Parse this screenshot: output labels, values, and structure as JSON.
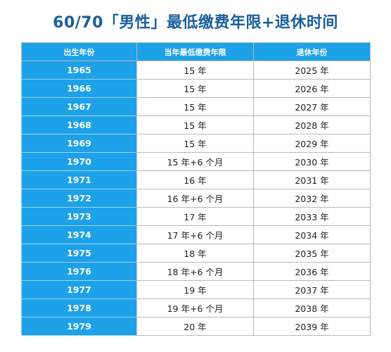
{
  "title": "60/70「男性」最低缴费年限+退休时间",
  "table": {
    "headers": [
      "出生年份",
      "当年最低缴费年限",
      "退休年份"
    ],
    "rows": [
      {
        "birth_year": "1965",
        "min_years": "15 年",
        "retire_year": "2025 年"
      },
      {
        "birth_year": "1966",
        "min_years": "15 年",
        "retire_year": "2026 年"
      },
      {
        "birth_year": "1967",
        "min_years": "15 年",
        "retire_year": "2027 年"
      },
      {
        "birth_year": "1968",
        "min_years": "15 年",
        "retire_year": "2028 年"
      },
      {
        "birth_year": "1969",
        "min_years": "15 年",
        "retire_year": "2029 年"
      },
      {
        "birth_year": "1970",
        "min_years": "15 年+6 个月",
        "retire_year": "2030 年"
      },
      {
        "birth_year": "1971",
        "min_years": "16 年",
        "retire_year": "2031 年"
      },
      {
        "birth_year": "1972",
        "min_years": "16 年+6 个月",
        "retire_year": "2032 年"
      },
      {
        "birth_year": "1973",
        "min_years": "17 年",
        "retire_year": "2033 年"
      },
      {
        "birth_year": "1974",
        "min_years": "17 年+6 个月",
        "retire_year": "2034 年"
      },
      {
        "birth_year": "1975",
        "min_years": "18 年",
        "retire_year": "2035 年"
      },
      {
        "birth_year": "1976",
        "min_years": "18 年+6 个月",
        "retire_year": "2036 年"
      },
      {
        "birth_year": "1977",
        "min_years": "19 年",
        "retire_year": "2037 年"
      },
      {
        "birth_year": "1978",
        "min_years": "19 年+6 个月",
        "retire_year": "2038 年"
      },
      {
        "birth_year": "1979",
        "min_years": "20 年",
        "retire_year": "2039 年"
      }
    ]
  },
  "colors": {
    "title": "#1a5f9c",
    "accent": "#1da1e8",
    "border": "#b9b9b9"
  }
}
